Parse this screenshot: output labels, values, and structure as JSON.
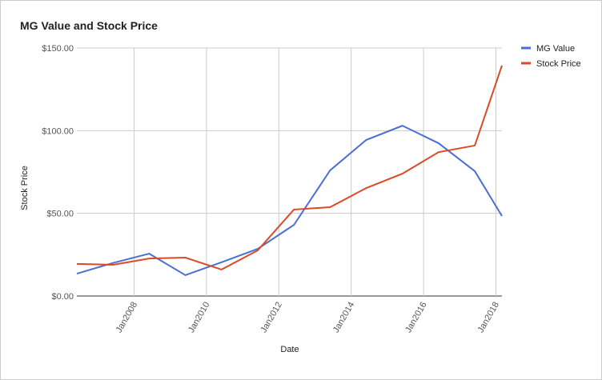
{
  "chart_data": {
    "type": "line",
    "title": "MG Value and Stock Price",
    "x_label": "Date",
    "y_label": "Stock Price",
    "x": [
      "2006-06",
      "2007-06",
      "2008-06",
      "2009-06",
      "2010-06",
      "2011-06",
      "2012-06",
      "2013-06",
      "2014-06",
      "2015-06",
      "2016-06",
      "2017-06",
      "2018-03"
    ],
    "series": [
      {
        "name": "MG Value",
        "color": "#4a6fd5",
        "values": [
          13.5,
          20,
          25.6,
          12.6,
          20.4,
          28.5,
          43,
          76,
          94.4,
          103,
          92.4,
          75.5,
          48.4
        ]
      },
      {
        "name": "Stock Price",
        "color": "#db4a28",
        "values": [
          19.4,
          18.9,
          22.7,
          23.2,
          16,
          27.6,
          52.3,
          53.7,
          65.3,
          74,
          87,
          91,
          139.4
        ]
      }
    ],
    "xlim": [
      "2006-06",
      "2018-03"
    ],
    "xticks": [
      {
        "value": "2008-01",
        "label": "Jan2008"
      },
      {
        "value": "2010-01",
        "label": "Jan2010"
      },
      {
        "value": "2012-01",
        "label": "Jan2012"
      },
      {
        "value": "2014-01",
        "label": "Jan2014"
      },
      {
        "value": "2016-01",
        "label": "Jan2016"
      },
      {
        "value": "2018-01",
        "label": "Jan2018"
      }
    ],
    "ylim": [
      0,
      150
    ],
    "yticks": [
      {
        "value": 0,
        "label": "$0.00"
      },
      {
        "value": 50,
        "label": "$50.00"
      },
      {
        "value": 100,
        "label": "$100.00"
      },
      {
        "value": 150,
        "label": "$150.00"
      }
    ],
    "grid": true,
    "legend": "right"
  }
}
